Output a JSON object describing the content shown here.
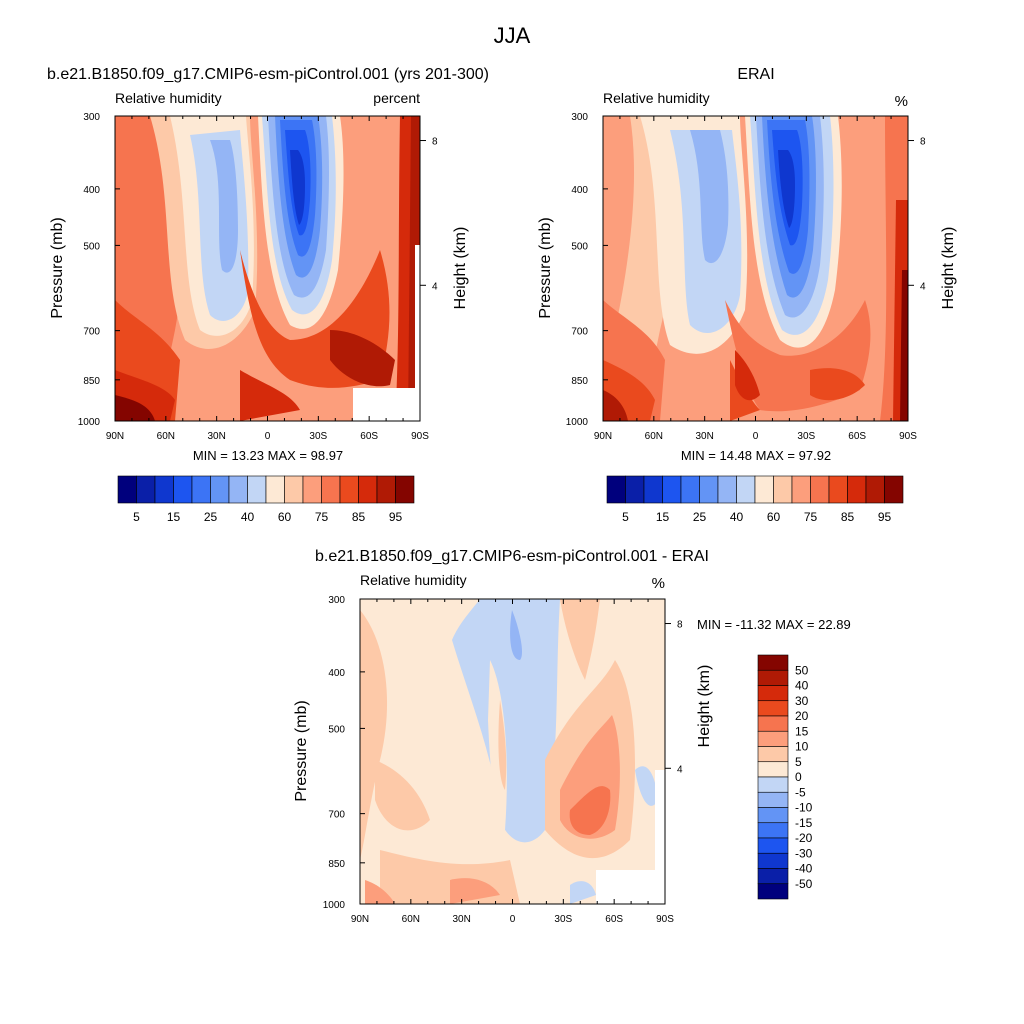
{
  "figure_title": "JJA",
  "chart_data": [
    {
      "type": "contour",
      "title": "b.e21.B1850.f09_g17.CMIP6-esm-piControl.001 (yrs 201-300)",
      "left_label": "Relative humidity",
      "right_label": "percent",
      "ylabel": "Pressure (mb)",
      "ylabel_right": "Height (km)",
      "xticks": [
        "90N",
        "60N",
        "30N",
        "0",
        "30S",
        "60S",
        "90S"
      ],
      "yticks": [
        "300",
        "400",
        "500",
        "700",
        "850",
        "1000"
      ],
      "right_ticks": [
        "8",
        "4"
      ],
      "stats": "MIN =  13.23  MAX =  98.97",
      "levels": [
        5,
        10,
        15,
        20,
        25,
        30,
        40,
        50,
        60,
        70,
        75,
        80,
        85,
        90,
        95
      ],
      "colorbar_labels": [
        "5",
        "15",
        "25",
        "40",
        "60",
        "75",
        "85",
        "95"
      ],
      "colors": [
        "#00007d",
        "#0a1fa8",
        "#0f37cf",
        "#1d55f0",
        "#3c74f5",
        "#6394f5",
        "#94b5f5",
        "#c2d6f5",
        "#fde9d5",
        "#fdc9a8",
        "#fc9e7c",
        "#f6744f",
        "#ea4a1e",
        "#d52a0b",
        "#b01a05",
        "#840500"
      ],
      "min": 13.23,
      "max": 98.97
    },
    {
      "type": "contour",
      "title": "ERAI",
      "left_label": "Relative humidity",
      "right_label": "%",
      "ylabel": "Pressure (mb)",
      "ylabel_right": "Height (km)",
      "xticks": [
        "90N",
        "60N",
        "30N",
        "0",
        "30S",
        "60S",
        "90S"
      ],
      "yticks": [
        "300",
        "400",
        "500",
        "700",
        "850",
        "1000"
      ],
      "right_ticks": [
        "8",
        "4"
      ],
      "stats": "MIN =  14.48  MAX =  97.92",
      "levels": [
        5,
        10,
        15,
        20,
        25,
        30,
        40,
        50,
        60,
        70,
        75,
        80,
        85,
        90,
        95
      ],
      "colorbar_labels": [
        "5",
        "15",
        "25",
        "40",
        "60",
        "75",
        "85",
        "95"
      ],
      "colors": [
        "#00007d",
        "#0a1fa8",
        "#0f37cf",
        "#1d55f0",
        "#3c74f5",
        "#6394f5",
        "#94b5f5",
        "#c2d6f5",
        "#fde9d5",
        "#fdc9a8",
        "#fc9e7c",
        "#f6744f",
        "#ea4a1e",
        "#d52a0b",
        "#b01a05",
        "#840500"
      ],
      "min": 14.48,
      "max": 97.92
    },
    {
      "type": "contour",
      "title": "b.e21.B1850.f09_g17.CMIP6-esm-piControl.001 - ERAI",
      "left_label": "Relative humidity",
      "right_label": "%",
      "ylabel": "Pressure (mb)",
      "ylabel_right": "Height (km)",
      "xticks": [
        "90N",
        "60N",
        "30N",
        "0",
        "30S",
        "60S",
        "90S"
      ],
      "yticks": [
        "300",
        "400",
        "500",
        "700",
        "850",
        "1000"
      ],
      "right_ticks": [
        "8",
        "4"
      ],
      "stats": "MIN = -11.32  MAX =  22.89",
      "levels": [
        -50,
        -40,
        -30,
        -20,
        -15,
        -10,
        -5,
        0,
        5,
        10,
        15,
        20,
        30,
        40,
        50
      ],
      "colorbar_labels": [
        "-50",
        "-40",
        "-30",
        "-20",
        "-15",
        "-10",
        "-5",
        "0",
        "5",
        "10",
        "15",
        "20",
        "30",
        "40",
        "50"
      ],
      "colors": [
        "#00007d",
        "#0a1fa8",
        "#0f37cf",
        "#1d55f0",
        "#3c74f5",
        "#6394f5",
        "#94b5f5",
        "#c2d6f5",
        "#fde9d5",
        "#fdc9a8",
        "#fc9e7c",
        "#f6744f",
        "#ea4a1e",
        "#d52a0b",
        "#b01a05",
        "#840500"
      ],
      "min": -11.32,
      "max": 22.89
    }
  ]
}
